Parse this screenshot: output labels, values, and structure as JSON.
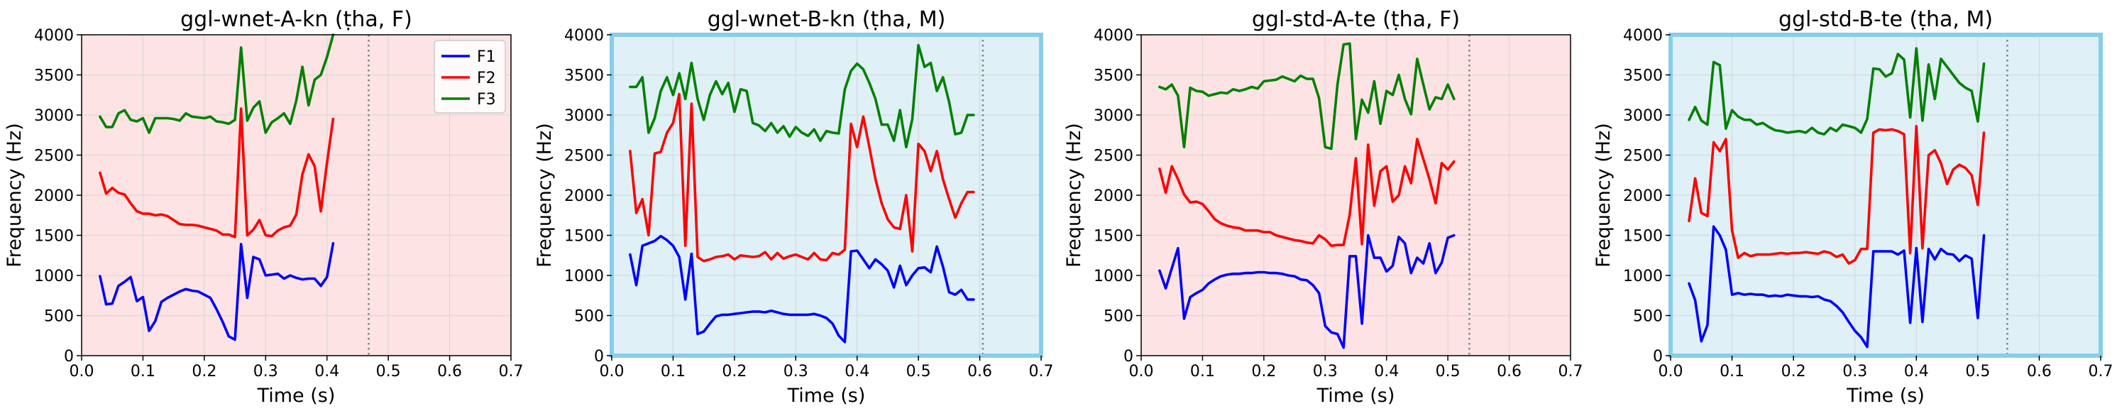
{
  "colors": {
    "F1": "#0000ff",
    "F2": "#ff0000",
    "F3": "#008000",
    "bg_female": "#fde3e3",
    "bg_male": "#dff0f7",
    "frame_male": "#87ceeb",
    "grid": "#d6d6d6",
    "end_marker": "#808080"
  },
  "chart_data": [
    {
      "type": "line",
      "title": "ggl-wnet-A-kn (ṭha, F)",
      "xlabel": "Time (s)",
      "ylabel": "Frequency (Hz)",
      "xlim": [
        0,
        0.7
      ],
      "ylim": [
        0,
        4000
      ],
      "xticks": [
        "0.0",
        "0.1",
        "0.2",
        "0.3",
        "0.4",
        "0.5",
        "0.6",
        "0.7"
      ],
      "yticks": [
        "0",
        "500",
        "1000",
        "1500",
        "2000",
        "2500",
        "3000",
        "3500",
        "4000"
      ],
      "background": "female",
      "grid": true,
      "legend": "top-right",
      "end_marker": 0.468,
      "x": [
        0.03,
        0.04,
        0.05,
        0.06,
        0.07,
        0.08,
        0.09,
        0.1,
        0.11,
        0.12,
        0.13,
        0.14,
        0.15,
        0.16,
        0.17,
        0.18,
        0.19,
        0.2,
        0.21,
        0.22,
        0.23,
        0.24,
        0.25,
        0.26,
        0.27,
        0.28,
        0.29,
        0.3,
        0.31,
        0.32,
        0.33,
        0.34,
        0.35,
        0.36,
        0.37,
        0.38,
        0.39,
        0.4,
        0.41
      ],
      "series": [
        {
          "name": "F1",
          "values": [
            990,
            640,
            650,
            870,
            920,
            980,
            680,
            730,
            310,
            430,
            670,
            720,
            760,
            800,
            830,
            810,
            800,
            760,
            720,
            580,
            420,
            240,
            200,
            1390,
            720,
            1230,
            1200,
            1000,
            1010,
            1020,
            960,
            1000,
            970,
            950,
            960,
            960,
            870,
            980,
            1400
          ]
        },
        {
          "name": "F2",
          "values": [
            2280,
            2020,
            2090,
            2030,
            2010,
            1900,
            1800,
            1770,
            1770,
            1750,
            1760,
            1740,
            1690,
            1640,
            1630,
            1630,
            1620,
            1600,
            1580,
            1560,
            1510,
            1510,
            1480,
            3080,
            1500,
            1570,
            1690,
            1500,
            1490,
            1560,
            1600,
            1620,
            1760,
            2260,
            2510,
            2360,
            1800,
            2400,
            2950
          ]
        },
        {
          "name": "F3",
          "values": [
            2980,
            2850,
            2850,
            3020,
            3060,
            2940,
            2920,
            2960,
            2780,
            2960,
            2960,
            2960,
            2950,
            2930,
            3020,
            2980,
            2970,
            2960,
            2980,
            2920,
            2910,
            2890,
            2940,
            3840,
            2930,
            3090,
            3170,
            2780,
            2910,
            2960,
            3020,
            2890,
            3180,
            3600,
            3120,
            3440,
            3500,
            3720,
            4000
          ]
        }
      ]
    },
    {
      "type": "line",
      "title": "ggl-wnet-B-kn (ṭha, M)",
      "xlabel": "Time (s)",
      "ylabel": "Frequency (Hz)",
      "xlim": [
        0,
        0.7
      ],
      "ylim": [
        0,
        4000
      ],
      "xticks": [
        "0.0",
        "0.1",
        "0.2",
        "0.3",
        "0.4",
        "0.5",
        "0.6",
        "0.7"
      ],
      "yticks": [
        "0",
        "500",
        "1000",
        "1500",
        "2000",
        "2500",
        "3000",
        "3500",
        "4000"
      ],
      "background": "male",
      "grid": true,
      "end_marker": 0.605,
      "x": [
        0.03,
        0.04,
        0.05,
        0.06,
        0.07,
        0.08,
        0.09,
        0.1,
        0.11,
        0.12,
        0.13,
        0.14,
        0.15,
        0.16,
        0.17,
        0.18,
        0.19,
        0.2,
        0.21,
        0.22,
        0.23,
        0.24,
        0.25,
        0.26,
        0.27,
        0.28,
        0.29,
        0.3,
        0.31,
        0.32,
        0.33,
        0.34,
        0.35,
        0.36,
        0.37,
        0.38,
        0.39,
        0.4,
        0.41,
        0.42,
        0.43,
        0.44,
        0.45,
        0.46,
        0.47,
        0.48,
        0.49,
        0.5,
        0.51,
        0.52,
        0.53,
        0.54,
        0.55,
        0.56,
        0.57,
        0.58,
        0.59
      ],
      "series": [
        {
          "name": "F1",
          "values": [
            1260,
            880,
            1370,
            1400,
            1430,
            1490,
            1440,
            1370,
            1230,
            700,
            1270,
            270,
            300,
            400,
            490,
            510,
            510,
            520,
            530,
            540,
            550,
            550,
            540,
            560,
            540,
            520,
            510,
            510,
            510,
            510,
            520,
            500,
            470,
            400,
            250,
            170,
            1300,
            1310,
            1200,
            1090,
            1200,
            1140,
            1060,
            850,
            1120,
            880,
            1000,
            1090,
            1100,
            1040,
            1360,
            1110,
            790,
            760,
            820,
            700,
            700
          ]
        },
        {
          "name": "F2",
          "values": [
            2550,
            1780,
            1950,
            1500,
            2520,
            2540,
            2780,
            2900,
            3260,
            1370,
            3140,
            1230,
            1180,
            1200,
            1230,
            1240,
            1260,
            1200,
            1250,
            1240,
            1230,
            1240,
            1290,
            1200,
            1280,
            1210,
            1240,
            1260,
            1230,
            1200,
            1280,
            1200,
            1190,
            1280,
            1260,
            1320,
            2890,
            2600,
            2980,
            2600,
            2200,
            1900,
            1700,
            1600,
            1580,
            2000,
            1300,
            2640,
            2550,
            2300,
            2550,
            2200,
            1950,
            1720,
            1900,
            2040,
            2040
          ]
        },
        {
          "name": "F3",
          "values": [
            3350,
            3350,
            3470,
            2780,
            2960,
            3300,
            3470,
            3250,
            3520,
            3200,
            3650,
            3200,
            2940,
            3250,
            3420,
            3260,
            3400,
            3040,
            3320,
            3300,
            2900,
            2870,
            2800,
            2900,
            2780,
            2860,
            2730,
            2850,
            2780,
            2740,
            2820,
            2680,
            2800,
            2780,
            2770,
            3320,
            3550,
            3640,
            3570,
            3400,
            3200,
            2880,
            2880,
            2680,
            3060,
            2600,
            2950,
            3870,
            3600,
            3650,
            3300,
            3470,
            3160,
            2760,
            2780,
            3000,
            3000
          ]
        }
      ]
    },
    {
      "type": "line",
      "title": "ggl-std-A-te (ṭha, F)",
      "xlabel": "Time (s)",
      "ylabel": "Frequency (Hz)",
      "xlim": [
        0,
        0.7
      ],
      "ylim": [
        0,
        4000
      ],
      "xticks": [
        "0.0",
        "0.1",
        "0.2",
        "0.3",
        "0.4",
        "0.5",
        "0.6",
        "0.7"
      ],
      "yticks": [
        "0",
        "500",
        "1000",
        "1500",
        "2000",
        "2500",
        "3000",
        "3500",
        "4000"
      ],
      "background": "female",
      "grid": true,
      "end_marker": 0.535,
      "x": [
        0.03,
        0.04,
        0.05,
        0.06,
        0.07,
        0.08,
        0.09,
        0.1,
        0.11,
        0.12,
        0.13,
        0.14,
        0.15,
        0.16,
        0.17,
        0.18,
        0.19,
        0.2,
        0.21,
        0.22,
        0.23,
        0.24,
        0.25,
        0.26,
        0.27,
        0.28,
        0.29,
        0.3,
        0.31,
        0.32,
        0.33,
        0.34,
        0.35,
        0.36,
        0.37,
        0.38,
        0.39,
        0.4,
        0.41,
        0.42,
        0.43,
        0.44,
        0.45,
        0.46,
        0.47,
        0.48,
        0.49,
        0.5,
        0.51
      ],
      "series": [
        {
          "name": "F1",
          "values": [
            1060,
            840,
            1090,
            1340,
            460,
            730,
            780,
            820,
            900,
            950,
            990,
            1010,
            1020,
            1020,
            1030,
            1030,
            1040,
            1040,
            1030,
            1030,
            1020,
            1000,
            990,
            950,
            940,
            880,
            780,
            370,
            290,
            270,
            100,
            1240,
            1240,
            400,
            1500,
            1220,
            1220,
            1050,
            1120,
            1480,
            1400,
            1030,
            1220,
            1150,
            1400,
            1030,
            1160,
            1470,
            1500
          ]
        },
        {
          "name": "F2",
          "values": [
            2330,
            2030,
            2360,
            2200,
            2010,
            1910,
            1920,
            1890,
            1800,
            1700,
            1650,
            1620,
            1600,
            1590,
            1560,
            1560,
            1560,
            1540,
            1540,
            1500,
            1480,
            1460,
            1440,
            1430,
            1410,
            1400,
            1500,
            1450,
            1370,
            1380,
            1380,
            1760,
            2460,
            1390,
            2630,
            1870,
            2300,
            2360,
            1920,
            2000,
            2360,
            2150,
            2700,
            2450,
            2200,
            1900,
            2400,
            2320,
            2420
          ]
        },
        {
          "name": "F3",
          "values": [
            3350,
            3320,
            3380,
            3240,
            2600,
            3340,
            3300,
            3290,
            3240,
            3260,
            3280,
            3270,
            3320,
            3300,
            3320,
            3350,
            3330,
            3420,
            3430,
            3440,
            3480,
            3450,
            3420,
            3490,
            3450,
            3450,
            3210,
            2600,
            2580,
            3380,
            3880,
            3890,
            2700,
            3190,
            3030,
            3420,
            2890,
            3300,
            3250,
            3500,
            3200,
            3010,
            3700,
            3380,
            3070,
            3220,
            3200,
            3380,
            3200
          ]
        }
      ]
    },
    {
      "type": "line",
      "title": "ggl-std-B-te (ṭha, M)",
      "xlabel": "Time (s)",
      "ylabel": "Frequency (Hz)",
      "xlim": [
        0,
        0.7
      ],
      "ylim": [
        0,
        4000
      ],
      "xticks": [
        "0.0",
        "0.1",
        "0.2",
        "0.3",
        "0.4",
        "0.5",
        "0.6",
        "0.7"
      ],
      "yticks": [
        "0",
        "500",
        "1000",
        "1500",
        "2000",
        "2500",
        "3000",
        "3500",
        "4000"
      ],
      "background": "male",
      "grid": true,
      "end_marker": 0.548,
      "x": [
        0.03,
        0.04,
        0.05,
        0.06,
        0.07,
        0.08,
        0.09,
        0.1,
        0.11,
        0.12,
        0.13,
        0.14,
        0.15,
        0.16,
        0.17,
        0.18,
        0.19,
        0.2,
        0.21,
        0.22,
        0.23,
        0.24,
        0.25,
        0.26,
        0.27,
        0.28,
        0.29,
        0.3,
        0.31,
        0.32,
        0.33,
        0.34,
        0.35,
        0.36,
        0.37,
        0.38,
        0.39,
        0.4,
        0.41,
        0.42,
        0.43,
        0.44,
        0.45,
        0.46,
        0.47,
        0.48,
        0.49,
        0.5,
        0.51
      ],
      "series": [
        {
          "name": "F1",
          "values": [
            900,
            690,
            180,
            380,
            1610,
            1500,
            1320,
            760,
            780,
            760,
            770,
            760,
            760,
            740,
            750,
            740,
            760,
            750,
            740,
            740,
            730,
            740,
            700,
            680,
            620,
            540,
            420,
            310,
            230,
            110,
            1300,
            1300,
            1300,
            1300,
            1260,
            1310,
            410,
            1340,
            420,
            1330,
            1200,
            1330,
            1270,
            1260,
            1180,
            1250,
            1210,
            470,
            1500
          ]
        },
        {
          "name": "F2",
          "values": [
            1680,
            2210,
            1780,
            1740,
            2660,
            2550,
            2700,
            1560,
            1220,
            1280,
            1240,
            1260,
            1260,
            1260,
            1270,
            1280,
            1270,
            1280,
            1280,
            1290,
            1280,
            1270,
            1300,
            1280,
            1230,
            1260,
            1150,
            1190,
            1330,
            1330,
            2780,
            2820,
            2810,
            2820,
            2800,
            2760,
            1280,
            2860,
            1340,
            2500,
            2560,
            2400,
            2140,
            2320,
            2380,
            2340,
            2250,
            1880,
            2780
          ]
        },
        {
          "name": "F3",
          "values": [
            2940,
            3100,
            2930,
            2880,
            3660,
            3620,
            2830,
            3060,
            2980,
            2940,
            2940,
            2880,
            2900,
            2850,
            2810,
            2800,
            2780,
            2790,
            2800,
            2780,
            2840,
            2780,
            2760,
            2840,
            2800,
            2880,
            2860,
            2840,
            2780,
            2950,
            3580,
            3570,
            3480,
            3520,
            3760,
            3690,
            2970,
            3830,
            2930,
            3630,
            3200,
            3700,
            3600,
            3500,
            3400,
            3340,
            3300,
            2920,
            3640
          ]
        }
      ]
    }
  ]
}
